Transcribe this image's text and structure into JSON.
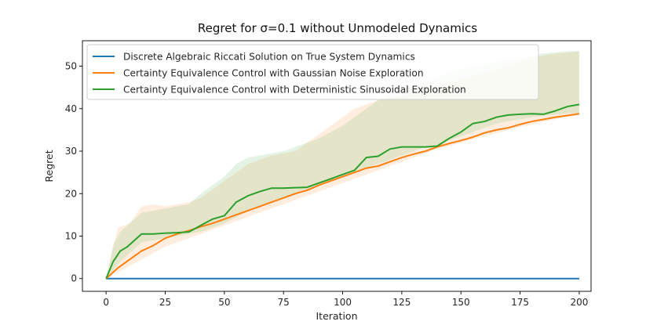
{
  "chart_data": {
    "type": "line",
    "title": "Regret for σ=0.1 without Unmodeled Dynamics",
    "xlabel": "Iteration",
    "ylabel": "Regret",
    "xlim": [
      -10,
      205
    ],
    "ylim": [
      -3,
      56
    ],
    "xticks": [
      0,
      25,
      50,
      75,
      100,
      125,
      150,
      175,
      200
    ],
    "yticks": [
      0,
      10,
      20,
      30,
      40,
      50
    ],
    "grid": false,
    "legend_position": "top-left",
    "series": [
      {
        "name": "Discrete Algebraic Riccati Solution on True System Dynamics",
        "color": "#1f77b4",
        "x": [
          0,
          200
        ],
        "y": [
          0,
          0
        ]
      },
      {
        "name": "Certainty Equivalence Control with Gaussian Noise Exploration",
        "color": "#ff7f0e",
        "x": [
          0,
          5,
          10,
          15,
          20,
          25,
          30,
          35,
          40,
          45,
          50,
          55,
          60,
          65,
          70,
          75,
          80,
          85,
          90,
          95,
          100,
          105,
          110,
          115,
          120,
          125,
          130,
          135,
          140,
          145,
          150,
          155,
          160,
          165,
          170,
          175,
          180,
          185,
          190,
          195,
          200
        ],
        "y": [
          0,
          2.5,
          4.5,
          6.5,
          7.8,
          9.5,
          10.5,
          11.3,
          12.2,
          13,
          14,
          15,
          16,
          17,
          18,
          19,
          20,
          20.8,
          22,
          23,
          24,
          25,
          26,
          26.5,
          27.5,
          28.5,
          29.3,
          30,
          31,
          31.8,
          32.5,
          33.3,
          34.3,
          35,
          35.5,
          36.3,
          37,
          37.5,
          38,
          38.4,
          38.8
        ],
        "band_upper": [
          0,
          12,
          13,
          17,
          17.5,
          17,
          17.5,
          18,
          19,
          21,
          23,
          25,
          27,
          28,
          29,
          29.5,
          30,
          32,
          34,
          36,
          38,
          40,
          41,
          42,
          42.5,
          43,
          44,
          45,
          45.5,
          46,
          47,
          47.5,
          48.5,
          49,
          50,
          51,
          52,
          52.5,
          53,
          53.2,
          53.5
        ],
        "band_lower": [
          0,
          1.5,
          3,
          4.5,
          6,
          7.5,
          8.5,
          9.5,
          10.5,
          11.5,
          12.5,
          13.5,
          14.5,
          15.5,
          16.5,
          17.5,
          18.5,
          19.5,
          20.5,
          21.5,
          22.5,
          23.5,
          24.5,
          25.5,
          26.5,
          27.5,
          28.5,
          29.5,
          30.5,
          31.2,
          32,
          32.8,
          33.5,
          34.2,
          35,
          35.7,
          36.3,
          37,
          37.5,
          38,
          38.5
        ]
      },
      {
        "name": "Certainty Equivalence Control with Deterministic Sinusoidal Exploration",
        "color": "#2ca02c",
        "x": [
          0,
          3,
          6,
          9,
          12,
          15,
          20,
          25,
          30,
          35,
          40,
          45,
          50,
          55,
          60,
          65,
          70,
          75,
          80,
          85,
          90,
          95,
          100,
          105,
          110,
          115,
          120,
          125,
          130,
          135,
          140,
          145,
          150,
          155,
          160,
          165,
          170,
          175,
          180,
          185,
          190,
          195,
          200
        ],
        "y": [
          0,
          4,
          6.5,
          7.5,
          9,
          10.5,
          10.5,
          10.7,
          10.8,
          11,
          12.5,
          14,
          14.8,
          18,
          19.5,
          20.5,
          21.3,
          21.3,
          21.4,
          21.5,
          22.5,
          23.5,
          24.5,
          25.5,
          28.5,
          28.8,
          30.5,
          31,
          31,
          31,
          31.2,
          33,
          34.5,
          36.5,
          37,
          38,
          38.5,
          38.7,
          38.8,
          38.7,
          39.5,
          40.5,
          41
        ],
        "band_upper": [
          0,
          8,
          11,
          12.5,
          14,
          15.5,
          16,
          16.5,
          17,
          17.5,
          20,
          22,
          24,
          27,
          28.5,
          29,
          29.5,
          30,
          31,
          32,
          33,
          34.5,
          36,
          38,
          40,
          42,
          43.5,
          44.5,
          45.5,
          46.5,
          47.5,
          48.5,
          49.5,
          50,
          50.5,
          51,
          51.5,
          52,
          52.5,
          53,
          53.3,
          53.5,
          53.6
        ],
        "band_lower": [
          0,
          2,
          4,
          5.5,
          7,
          8.5,
          9,
          9.5,
          10,
          10.5,
          11,
          12,
          13,
          14.5,
          16,
          17,
          18,
          19,
          20,
          21,
          22,
          23,
          24,
          25,
          26,
          27,
          28,
          29,
          30,
          31,
          31.5,
          32.5,
          33.5,
          34.5,
          35.5,
          36.5,
          37,
          37.5,
          38,
          38.3,
          38.6,
          38.9,
          39
        ]
      }
    ]
  }
}
